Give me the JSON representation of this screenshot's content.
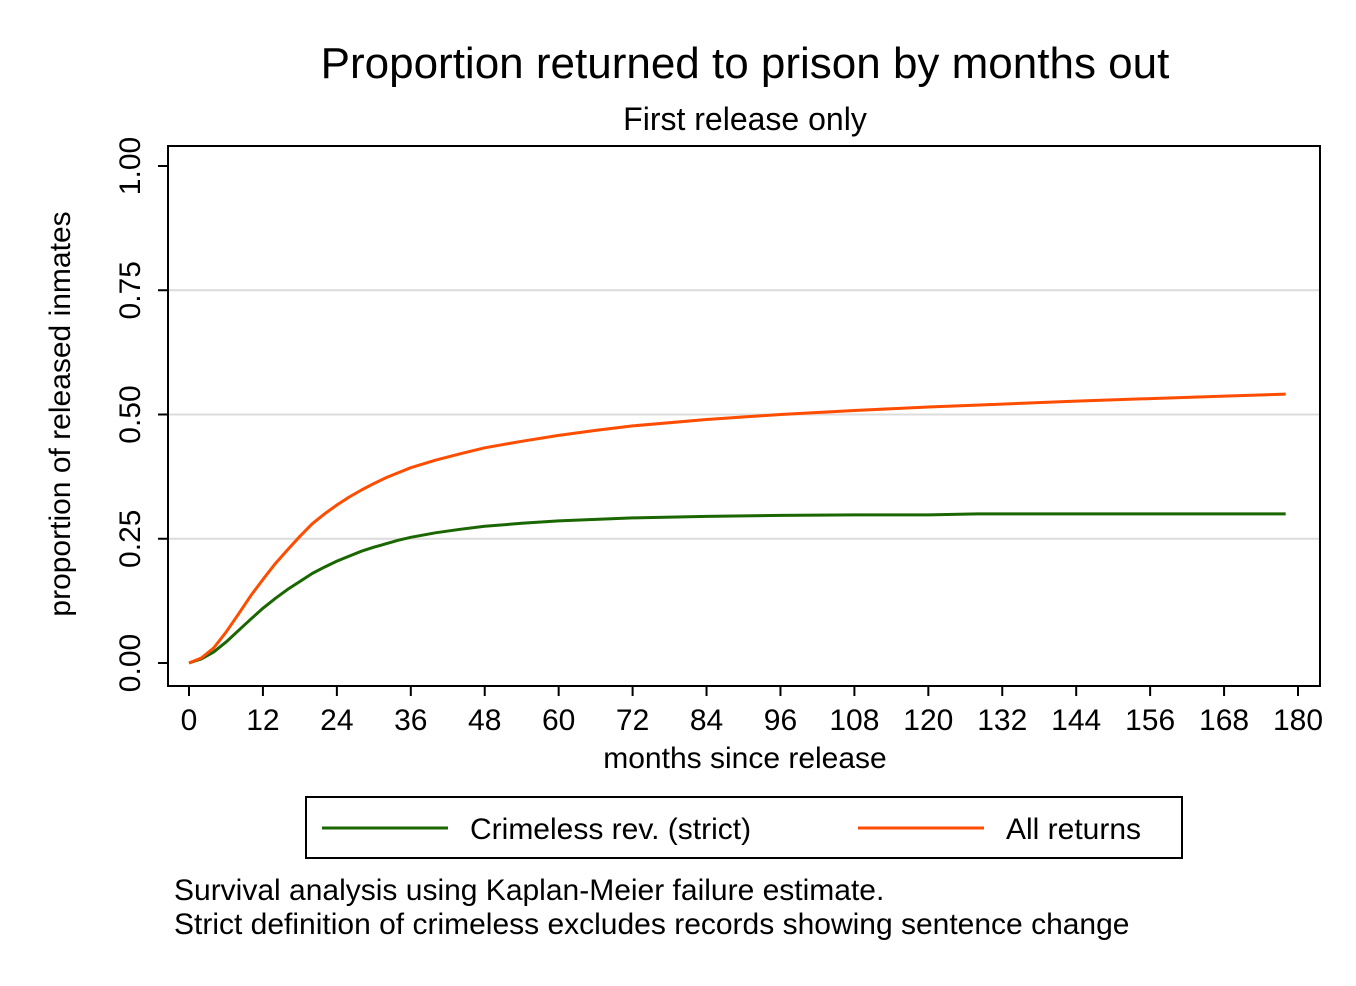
{
  "chart_data": {
    "type": "line",
    "title": "Proportion returned to prison by months out",
    "subtitle": "First release only",
    "xlabel": "months since release",
    "ylabel": "proportion of released inmates",
    "xlim": [
      0,
      180
    ],
    "ylim": [
      0,
      1
    ],
    "xticks": [
      "0",
      "12",
      "24",
      "36",
      "48",
      "60",
      "72",
      "84",
      "96",
      "108",
      "120",
      "132",
      "144",
      "156",
      "168",
      "180"
    ],
    "yticks": [
      "0.00",
      "0.25",
      "0.50",
      "0.75",
      "1.00"
    ],
    "grid": "horizontal",
    "legend": "bottom",
    "series": [
      {
        "name": "Crimeless rev. (strict)",
        "color": "#1a6600",
        "points": [
          [
            0,
            0
          ],
          [
            2,
            0.008
          ],
          [
            4,
            0.022
          ],
          [
            6,
            0.042
          ],
          [
            8,
            0.065
          ],
          [
            10,
            0.088
          ],
          [
            12,
            0.11
          ],
          [
            14,
            0.13
          ],
          [
            16,
            0.148
          ],
          [
            18,
            0.164
          ],
          [
            20,
            0.18
          ],
          [
            22,
            0.193
          ],
          [
            24,
            0.205
          ],
          [
            26,
            0.215
          ],
          [
            28,
            0.225
          ],
          [
            30,
            0.233
          ],
          [
            32,
            0.24
          ],
          [
            34,
            0.247
          ],
          [
            36,
            0.253
          ],
          [
            40,
            0.262
          ],
          [
            44,
            0.269
          ],
          [
            48,
            0.275
          ],
          [
            54,
            0.281
          ],
          [
            60,
            0.286
          ],
          [
            66,
            0.289
          ],
          [
            72,
            0.292
          ],
          [
            84,
            0.295
          ],
          [
            96,
            0.297
          ],
          [
            108,
            0.298
          ],
          [
            120,
            0.298
          ],
          [
            128,
            0.3
          ],
          [
            144,
            0.3
          ],
          [
            160,
            0.3
          ],
          [
            178,
            0.3
          ]
        ]
      },
      {
        "name": "All returns",
        "color": "#ff4d00",
        "points": [
          [
            0,
            0
          ],
          [
            2,
            0.01
          ],
          [
            4,
            0.03
          ],
          [
            6,
            0.062
          ],
          [
            8,
            0.098
          ],
          [
            10,
            0.135
          ],
          [
            12,
            0.168
          ],
          [
            14,
            0.2
          ],
          [
            16,
            0.228
          ],
          [
            18,
            0.255
          ],
          [
            20,
            0.28
          ],
          [
            22,
            0.3
          ],
          [
            24,
            0.318
          ],
          [
            26,
            0.334
          ],
          [
            28,
            0.348
          ],
          [
            30,
            0.361
          ],
          [
            32,
            0.373
          ],
          [
            34,
            0.383
          ],
          [
            36,
            0.393
          ],
          [
            40,
            0.408
          ],
          [
            44,
            0.421
          ],
          [
            48,
            0.433
          ],
          [
            54,
            0.446
          ],
          [
            60,
            0.458
          ],
          [
            66,
            0.468
          ],
          [
            72,
            0.477
          ],
          [
            84,
            0.49
          ],
          [
            96,
            0.5
          ],
          [
            108,
            0.508
          ],
          [
            120,
            0.515
          ],
          [
            132,
            0.521
          ],
          [
            144,
            0.527
          ],
          [
            156,
            0.532
          ],
          [
            168,
            0.537
          ],
          [
            178,
            0.541
          ]
        ]
      }
    ]
  },
  "notes": [
    "Survival analysis using Kaplan-Meier failure estimate.",
    "Strict definition of crimeless excludes records showing sentence change"
  ]
}
